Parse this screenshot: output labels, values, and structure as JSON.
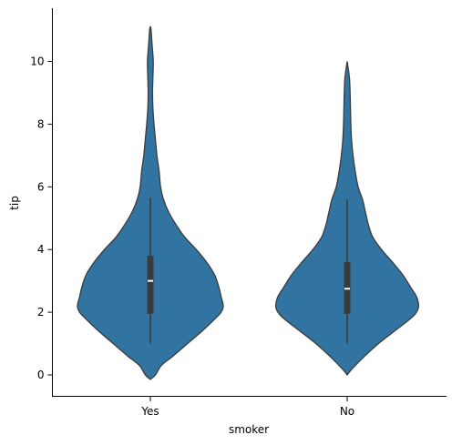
{
  "chart_data": {
    "type": "violin",
    "xlabel": "smoker",
    "ylabel": "tip",
    "categories": [
      "Yes",
      "No"
    ],
    "ylim": [
      -0.7,
      11.7
    ],
    "yticks": [
      0,
      2,
      4,
      6,
      8,
      10
    ],
    "grid": false,
    "color": "#3274a1",
    "edge_color": "#3b3b3b",
    "violins": [
      {
        "category": "Yes",
        "box": {
          "whisker_low": 1.0,
          "q1": 1.95,
          "median": 3.0,
          "q3": 3.8,
          "whisker_high": 5.65
        },
        "range": [
          -0.14,
          11.12
        ],
        "density": [
          [
            -0.14,
            0.0
          ],
          [
            0.0,
            0.07
          ],
          [
            0.3,
            0.15
          ],
          [
            0.6,
            0.31
          ],
          [
            1.0,
            0.51
          ],
          [
            1.4,
            0.71
          ],
          [
            1.8,
            0.89
          ],
          [
            2.0,
            0.97
          ],
          [
            2.2,
            1.0
          ],
          [
            2.5,
            0.97
          ],
          [
            2.8,
            0.94
          ],
          [
            3.2,
            0.88
          ],
          [
            3.6,
            0.77
          ],
          [
            4.0,
            0.63
          ],
          [
            4.4,
            0.47
          ],
          [
            4.8,
            0.35
          ],
          [
            5.2,
            0.25
          ],
          [
            5.6,
            0.18
          ],
          [
            6.0,
            0.14
          ],
          [
            6.5,
            0.12
          ],
          [
            7.0,
            0.09
          ],
          [
            7.5,
            0.07
          ],
          [
            8.0,
            0.05
          ],
          [
            8.5,
            0.035
          ],
          [
            9.0,
            0.03
          ],
          [
            9.5,
            0.035
          ],
          [
            10.0,
            0.04
          ],
          [
            10.5,
            0.025
          ],
          [
            11.0,
            0.01
          ],
          [
            11.12,
            0.0
          ]
        ]
      },
      {
        "category": "No",
        "box": {
          "whisker_low": 1.0,
          "q1": 1.95,
          "median": 2.75,
          "q3": 3.6,
          "whisker_high": 5.6
        },
        "range": [
          0.0,
          10.0
        ],
        "density": [
          [
            0.0,
            0.0
          ],
          [
            0.2,
            0.07
          ],
          [
            0.6,
            0.24
          ],
          [
            1.0,
            0.43
          ],
          [
            1.4,
            0.65
          ],
          [
            1.8,
            0.87
          ],
          [
            2.0,
            0.95
          ],
          [
            2.2,
            0.98
          ],
          [
            2.5,
            0.95
          ],
          [
            2.8,
            0.87
          ],
          [
            3.2,
            0.76
          ],
          [
            3.6,
            0.62
          ],
          [
            4.0,
            0.47
          ],
          [
            4.4,
            0.35
          ],
          [
            4.8,
            0.29
          ],
          [
            5.2,
            0.25
          ],
          [
            5.6,
            0.21
          ],
          [
            6.0,
            0.15
          ],
          [
            6.5,
            0.11
          ],
          [
            7.0,
            0.08
          ],
          [
            7.5,
            0.06
          ],
          [
            8.0,
            0.05
          ],
          [
            8.5,
            0.045
          ],
          [
            9.0,
            0.04
          ],
          [
            9.5,
            0.03
          ],
          [
            10.0,
            0.0
          ]
        ]
      }
    ]
  }
}
